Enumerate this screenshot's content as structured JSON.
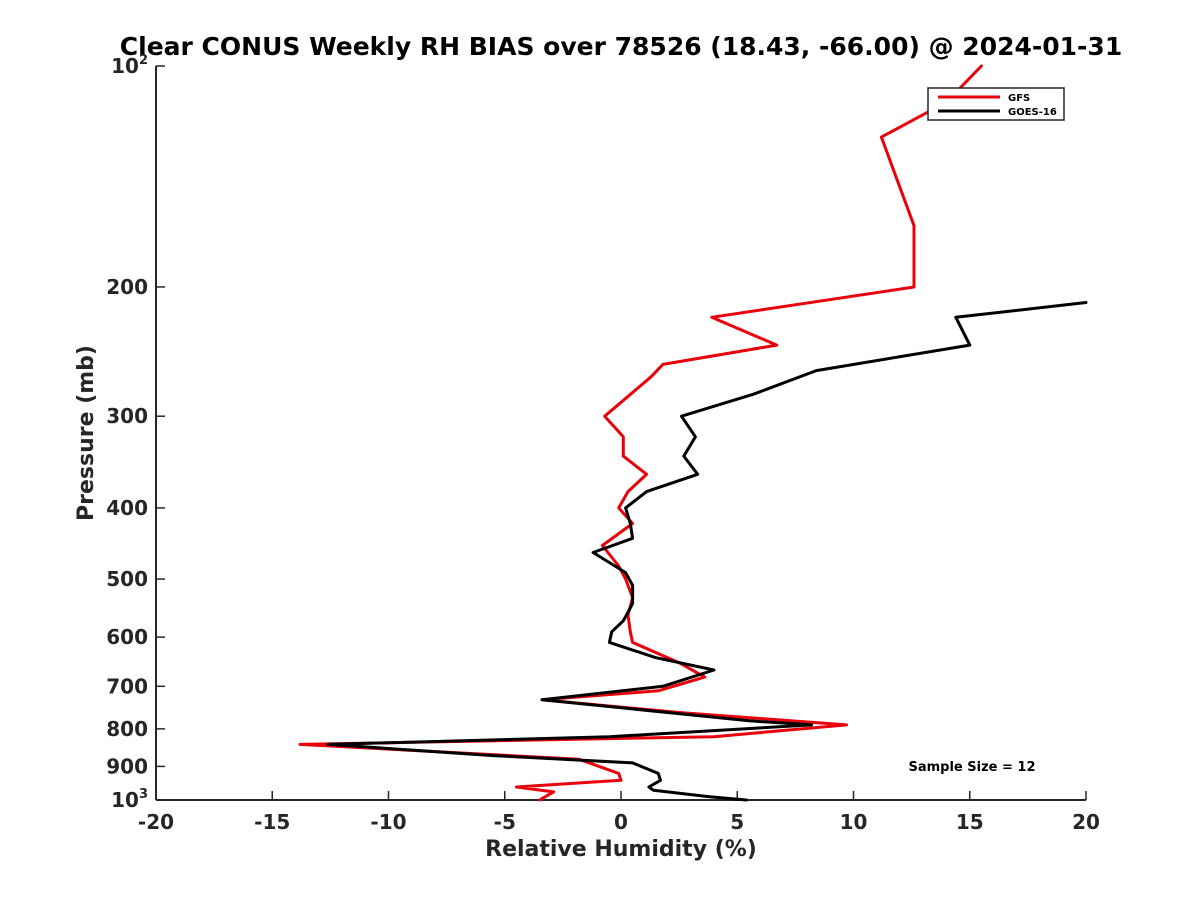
{
  "chart_data": {
    "type": "line",
    "title": "Clear CONUS Weekly RH BIAS over 78526 (18.43, -66.00) @ 2024-01-31",
    "xlabel": "Relative Humidity (%)",
    "ylabel": "Pressure (mb)",
    "xlim": [
      -20,
      20
    ],
    "ylim": [
      100,
      1000
    ],
    "y_scale": "log",
    "y_reversed": true,
    "x_ticks": [
      -20,
      -15,
      -10,
      -5,
      0,
      5,
      10,
      15,
      20
    ],
    "x_tick_labels": [
      "-20",
      "-15",
      "-10",
      "-5",
      "0",
      "5",
      "10",
      "15",
      "20"
    ],
    "y_ticks": [
      100,
      200,
      300,
      400,
      500,
      600,
      700,
      800,
      900,
      1000
    ],
    "y_tick_labels": [
      {
        "base": "10",
        "exp": "2"
      },
      {
        "base": "200",
        "exp": ""
      },
      {
        "base": "300",
        "exp": ""
      },
      {
        "base": "400",
        "exp": ""
      },
      {
        "base": "500",
        "exp": ""
      },
      {
        "base": "600",
        "exp": ""
      },
      {
        "base": "700",
        "exp": ""
      },
      {
        "base": "800",
        "exp": ""
      },
      {
        "base": "900",
        "exp": ""
      },
      {
        "base": "10",
        "exp": "3"
      }
    ],
    "grid": false,
    "legend_position": "top-right",
    "annotation": "Sample Size = 12",
    "series": [
      {
        "name": "GFS",
        "color": "#e8000b",
        "points": [
          [
            15.5,
            100
          ],
          [
            14.0,
            112
          ],
          [
            11.2,
            125
          ],
          [
            12.6,
            165
          ],
          [
            12.6,
            200
          ],
          [
            3.9,
            220
          ],
          [
            6.7,
            240
          ],
          [
            1.8,
            255
          ],
          [
            1.3,
            265
          ],
          [
            -0.7,
            300
          ],
          [
            0.1,
            320
          ],
          [
            0.1,
            340
          ],
          [
            1.1,
            360
          ],
          [
            0.3,
            380
          ],
          [
            -0.1,
            400
          ],
          [
            0.5,
            420
          ],
          [
            -0.8,
            450
          ],
          [
            -0.1,
            480
          ],
          [
            0.2,
            500
          ],
          [
            0.5,
            530
          ],
          [
            0.3,
            560
          ],
          [
            0.4,
            590
          ],
          [
            0.5,
            610
          ],
          [
            2.5,
            650
          ],
          [
            3.6,
            680
          ],
          [
            1.6,
            710
          ],
          [
            -3.4,
            730
          ],
          [
            2.5,
            760
          ],
          [
            9.7,
            790
          ],
          [
            4.0,
            820
          ],
          [
            -13.8,
            840
          ],
          [
            -1.8,
            880
          ],
          [
            -0.1,
            920
          ],
          [
            0.0,
            940
          ],
          [
            -4.5,
            960
          ],
          [
            -2.9,
            975
          ],
          [
            -3.5,
            1000
          ]
        ]
      },
      {
        "name": "GOES-16",
        "color": "#000000",
        "points": [
          [
            20.0,
            210
          ],
          [
            14.4,
            220
          ],
          [
            15.0,
            240
          ],
          [
            8.4,
            260
          ],
          [
            5.7,
            280
          ],
          [
            2.6,
            300
          ],
          [
            3.2,
            320
          ],
          [
            2.7,
            340
          ],
          [
            3.3,
            360
          ],
          [
            1.1,
            380
          ],
          [
            0.2,
            400
          ],
          [
            0.4,
            420
          ],
          [
            0.5,
            440
          ],
          [
            -1.2,
            460
          ],
          [
            0.2,
            490
          ],
          [
            0.5,
            510
          ],
          [
            0.5,
            540
          ],
          [
            0.1,
            570
          ],
          [
            -0.4,
            590
          ],
          [
            -0.5,
            610
          ],
          [
            1.5,
            640
          ],
          [
            4.0,
            665
          ],
          [
            1.8,
            700
          ],
          [
            -3.4,
            730
          ],
          [
            2.0,
            760
          ],
          [
            5.5,
            780
          ],
          [
            8.2,
            790
          ],
          [
            -0.5,
            820
          ],
          [
            -12.6,
            840
          ],
          [
            -5.5,
            870
          ],
          [
            0.5,
            890
          ],
          [
            1.6,
            920
          ],
          [
            1.7,
            940
          ],
          [
            1.2,
            960
          ],
          [
            1.4,
            970
          ],
          [
            3.8,
            990
          ],
          [
            5.4,
            1000
          ]
        ]
      }
    ]
  }
}
